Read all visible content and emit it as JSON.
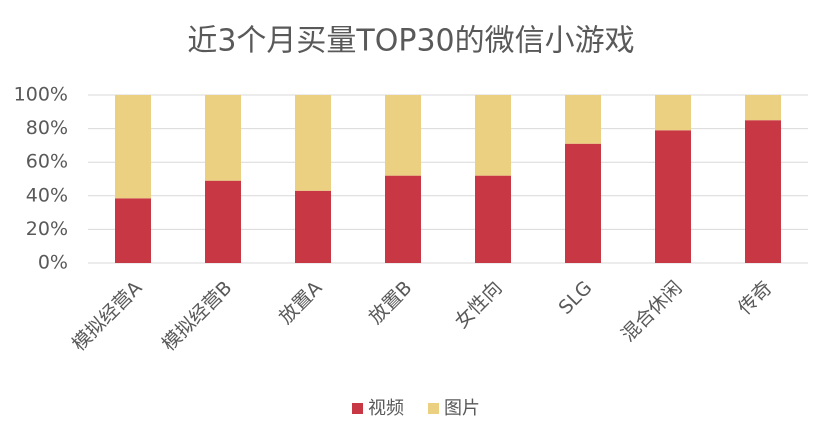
{
  "chart_data": {
    "type": "stacked_bar",
    "title": "近3个月买量TOP30的微信小游戏",
    "categories": [
      "模拟经营A",
      "模拟经营B",
      "放置A",
      "放置B",
      "女性向",
      "SLG",
      "混合休闲",
      "传奇"
    ],
    "series": [
      {
        "name": "视频",
        "color": "#c83744",
        "values": [
          38.5,
          49,
          43,
          52,
          52,
          71,
          79,
          85
        ]
      },
      {
        "name": "图片",
        "color": "#ecd081",
        "values": [
          61.5,
          51,
          57,
          48,
          48,
          29,
          21,
          15
        ]
      }
    ],
    "ylim": [
      0,
      100
    ],
    "yticks": [
      {
        "value": 0,
        "label": "0%"
      },
      {
        "value": 20,
        "label": "20%"
      },
      {
        "value": 40,
        "label": "40%"
      },
      {
        "value": 60,
        "label": "60%"
      },
      {
        "value": 80,
        "label": "80%"
      },
      {
        "value": 100,
        "label": "100%"
      }
    ],
    "grid": true,
    "legend": "bottom"
  }
}
